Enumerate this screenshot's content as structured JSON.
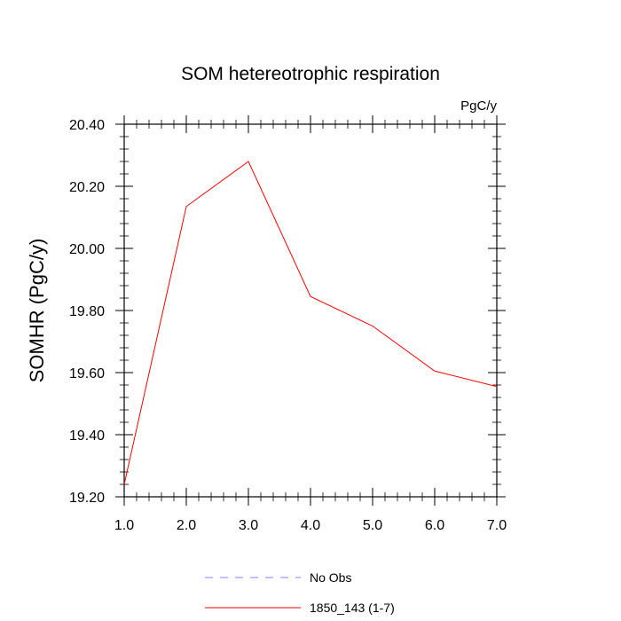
{
  "chart_data": {
    "type": "line",
    "title": "SOM hetereotrophic respiration",
    "units_label": "PgC/y",
    "xlabel": "",
    "ylabel": "SOMHR  (PgC/y)",
    "xlim": [
      1.0,
      7.0
    ],
    "ylim": [
      19.2,
      20.4
    ],
    "x_ticks": [
      "1.0",
      "2.0",
      "3.0",
      "4.0",
      "5.0",
      "6.0",
      "7.0"
    ],
    "y_ticks": [
      "19.20",
      "19.40",
      "19.60",
      "19.80",
      "20.00",
      "20.20",
      "20.40"
    ],
    "grid": false,
    "legend_position": "bottom",
    "series": [
      {
        "name": "1850_143 (1-7)",
        "color": "#ff0000",
        "style": "solid",
        "x": [
          1.0,
          2.0,
          3.0,
          4.0,
          5.0,
          6.0,
          7.0
        ],
        "values": [
          19.24,
          20.135,
          20.28,
          19.845,
          19.75,
          19.605,
          19.555
        ]
      }
    ],
    "legend": [
      {
        "label": "No Obs",
        "color": "#8080ff",
        "style": "dashed"
      },
      {
        "label": "1850_143 (1-7)",
        "color": "#ff0000",
        "style": "solid"
      }
    ]
  }
}
